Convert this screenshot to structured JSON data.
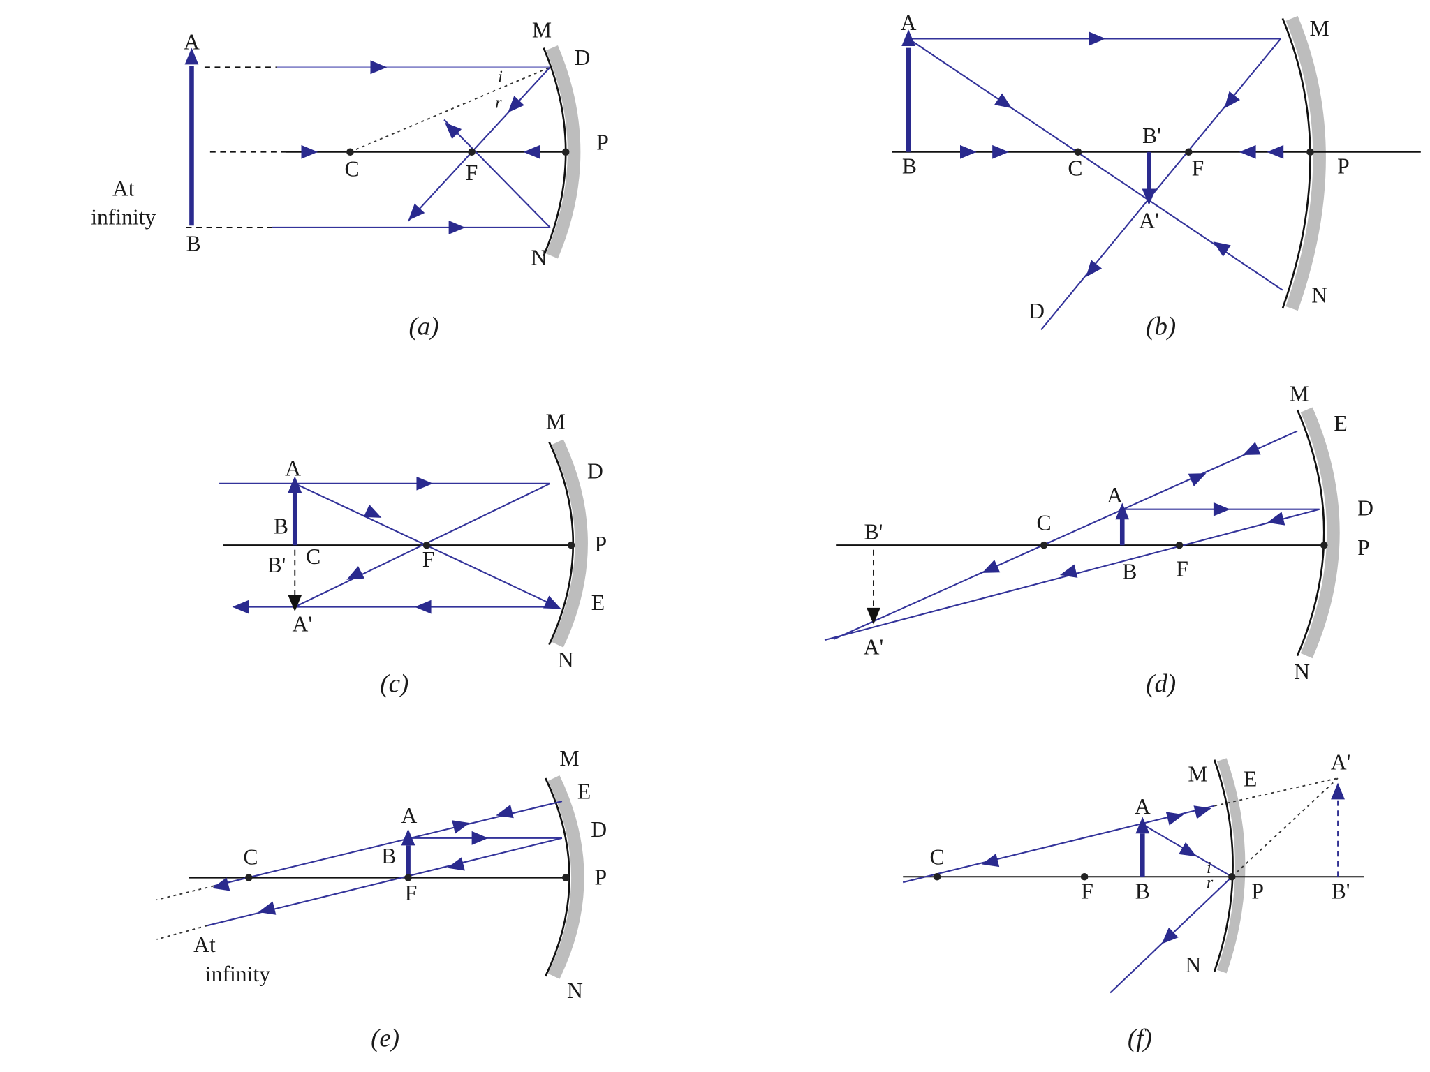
{
  "panels": [
    {
      "caption": "(a)",
      "labels": [
        "A",
        "M",
        "D",
        "i",
        "r",
        "P",
        "C",
        "F",
        "At",
        "infinity",
        "B",
        "N"
      ]
    },
    {
      "caption": "(b)",
      "labels": [
        "A",
        "M",
        "B'",
        "B",
        "C",
        "F",
        "P",
        "A'",
        "N",
        "D"
      ]
    },
    {
      "caption": "(c)",
      "labels": [
        "M",
        "A",
        "D",
        "B",
        "P",
        "B'",
        "C",
        "F",
        "E",
        "A'",
        "N"
      ]
    },
    {
      "caption": "(d)",
      "labels": [
        "M",
        "E",
        "A",
        "D",
        "C",
        "B'",
        "P",
        "B",
        "F",
        "A'",
        "N"
      ]
    },
    {
      "caption": "(e)",
      "labels": [
        "M",
        "E",
        "A",
        "D",
        "B",
        "C",
        "P",
        "F",
        "At",
        "infinity",
        "N"
      ]
    },
    {
      "caption": "(f)",
      "labels": [
        "A'",
        "M",
        "E",
        "A",
        "C",
        "i",
        "r",
        "F",
        "B",
        "P",
        "B'",
        "N"
      ]
    }
  ]
}
